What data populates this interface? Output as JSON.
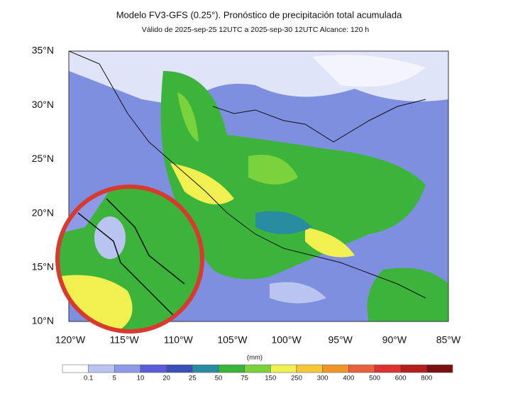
{
  "map": {
    "title": "Modelo FV3-GFS (0.25°). Pronóstico de precipitación total acumulada",
    "subtitle": "Válido de 2025-sep-25 12UTC a 2025-sep-30 12UTC    Alcance: 120 h",
    "lat_labels": [
      "35°N",
      "30°N",
      "25°N",
      "20°N",
      "15°N",
      "10°N"
    ],
    "lon_labels": [
      "120°W",
      "115°W",
      "110°W",
      "105°W",
      "100°W",
      "95°W",
      "90°W",
      "85°W"
    ]
  },
  "colorbar": {
    "unit": "(mm)",
    "labels": [
      "0.1",
      "5",
      "10",
      "20",
      "25",
      "50",
      "75",
      "150",
      "250",
      "300",
      "400",
      "500",
      "600",
      "800"
    ],
    "colors": [
      "#ffffff",
      "#b9c4f0",
      "#8e9ae6",
      "#5c5cd6",
      "#3a50b8",
      "#2a8ca0",
      "#3cb43c",
      "#7ad23c",
      "#f0f050",
      "#f4c836",
      "#f09628",
      "#e8603c",
      "#dc3232",
      "#b41e1e",
      "#7a1010"
    ]
  }
}
